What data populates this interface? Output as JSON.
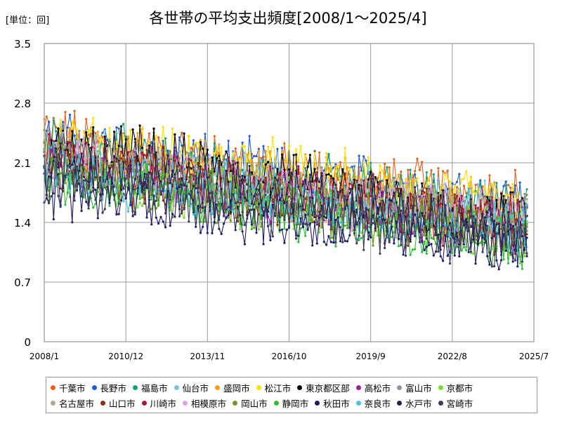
{
  "unit_label": "[単位：回]",
  "chart_data": {
    "type": "line",
    "title": "各世帯の平均支出頻度[2008/1～2025/4]",
    "ylim": [
      0,
      3.5
    ],
    "yticks": [
      "0",
      "0.7",
      "1.4",
      "2.1",
      "2.8",
      "3.5"
    ],
    "xlim": [
      "2008/1",
      "2025/7"
    ],
    "xticks": [
      "2008/1",
      "2010/12",
      "2013/11",
      "2016/10",
      "2019/9",
      "2022/8",
      "2025/7"
    ],
    "grid": true,
    "legend": "bottom",
    "series": [
      {
        "name": "千葉市",
        "color": "#e8601c",
        "values": [
          2.45,
          2.28,
          2.12,
          1.98,
          1.87,
          1.78,
          1.7
        ]
      },
      {
        "name": "長野市",
        "color": "#1f5fd6",
        "values": [
          2.35,
          2.25,
          2.1,
          1.97,
          1.86,
          1.76,
          1.62
        ]
      },
      {
        "name": "福島市",
        "color": "#12a479",
        "values": [
          2.3,
          2.18,
          2.03,
          1.9,
          1.78,
          1.65,
          1.5
        ]
      },
      {
        "name": "仙台市",
        "color": "#7bbfe6",
        "values": [
          2.25,
          2.12,
          1.98,
          1.85,
          1.72,
          1.6,
          1.45
        ]
      },
      {
        "name": "盛岡市",
        "color": "#f2a01c",
        "values": [
          2.3,
          2.17,
          2.03,
          1.9,
          1.76,
          1.63,
          1.48
        ]
      },
      {
        "name": "松江市",
        "color": "#ffe000",
        "values": [
          2.35,
          2.25,
          2.12,
          2.02,
          1.85,
          1.7,
          1.55
        ]
      },
      {
        "name": "東京都区部",
        "color": "#000000",
        "values": [
          2.2,
          2.2,
          2.05,
          1.88,
          1.72,
          1.58,
          1.42
        ]
      },
      {
        "name": "高松市",
        "color": "#9b1f9b",
        "values": [
          2.15,
          2.0,
          1.85,
          1.7,
          1.57,
          1.44,
          1.3
        ]
      },
      {
        "name": "富山市",
        "color": "#8c96a0",
        "values": [
          2.2,
          2.05,
          1.9,
          1.76,
          1.62,
          1.5,
          1.36
        ]
      },
      {
        "name": "京都市",
        "color": "#77e02f",
        "values": [
          2.0,
          1.88,
          1.75,
          1.62,
          1.5,
          1.38,
          1.25
        ]
      },
      {
        "name": "名古屋市",
        "color": "#b4a888",
        "values": [
          2.1,
          1.98,
          1.85,
          1.72,
          1.6,
          1.48,
          1.35
        ]
      },
      {
        "name": "山口市",
        "color": "#8b2d0e",
        "values": [
          2.05,
          1.93,
          1.8,
          1.67,
          1.55,
          1.43,
          1.3
        ]
      },
      {
        "name": "川崎市",
        "color": "#b0133a",
        "values": [
          2.2,
          2.05,
          1.9,
          1.76,
          1.63,
          1.5,
          1.37
        ]
      },
      {
        "name": "相模原市",
        "color": "#d9a7e0",
        "values": [
          2.15,
          2.02,
          1.88,
          1.75,
          1.62,
          1.5,
          1.38
        ]
      },
      {
        "name": "岡山市",
        "color": "#6e9b1e",
        "values": [
          2.0,
          1.88,
          1.74,
          1.62,
          1.5,
          1.38,
          1.25
        ]
      },
      {
        "name": "静岡市",
        "color": "#2cc22c",
        "values": [
          1.95,
          1.82,
          1.68,
          1.55,
          1.42,
          1.3,
          1.18
        ]
      },
      {
        "name": "秋田市",
        "color": "#1c1c6e",
        "values": [
          1.8,
          1.68,
          1.55,
          1.42,
          1.3,
          1.2,
          1.1
        ]
      },
      {
        "name": "奈良市",
        "color": "#3ec8d8",
        "values": [
          2.05,
          1.92,
          1.78,
          1.65,
          1.52,
          1.4,
          1.28
        ]
      },
      {
        "name": "水戸市",
        "color": "#2a1e4a",
        "values": [
          2.1,
          1.97,
          1.83,
          1.7,
          1.57,
          1.45,
          1.32
        ]
      },
      {
        "name": "宮崎市",
        "color": "#3a3a5e",
        "values": [
          1.9,
          1.78,
          1.65,
          1.52,
          1.4,
          1.28,
          1.16
        ]
      }
    ]
  }
}
